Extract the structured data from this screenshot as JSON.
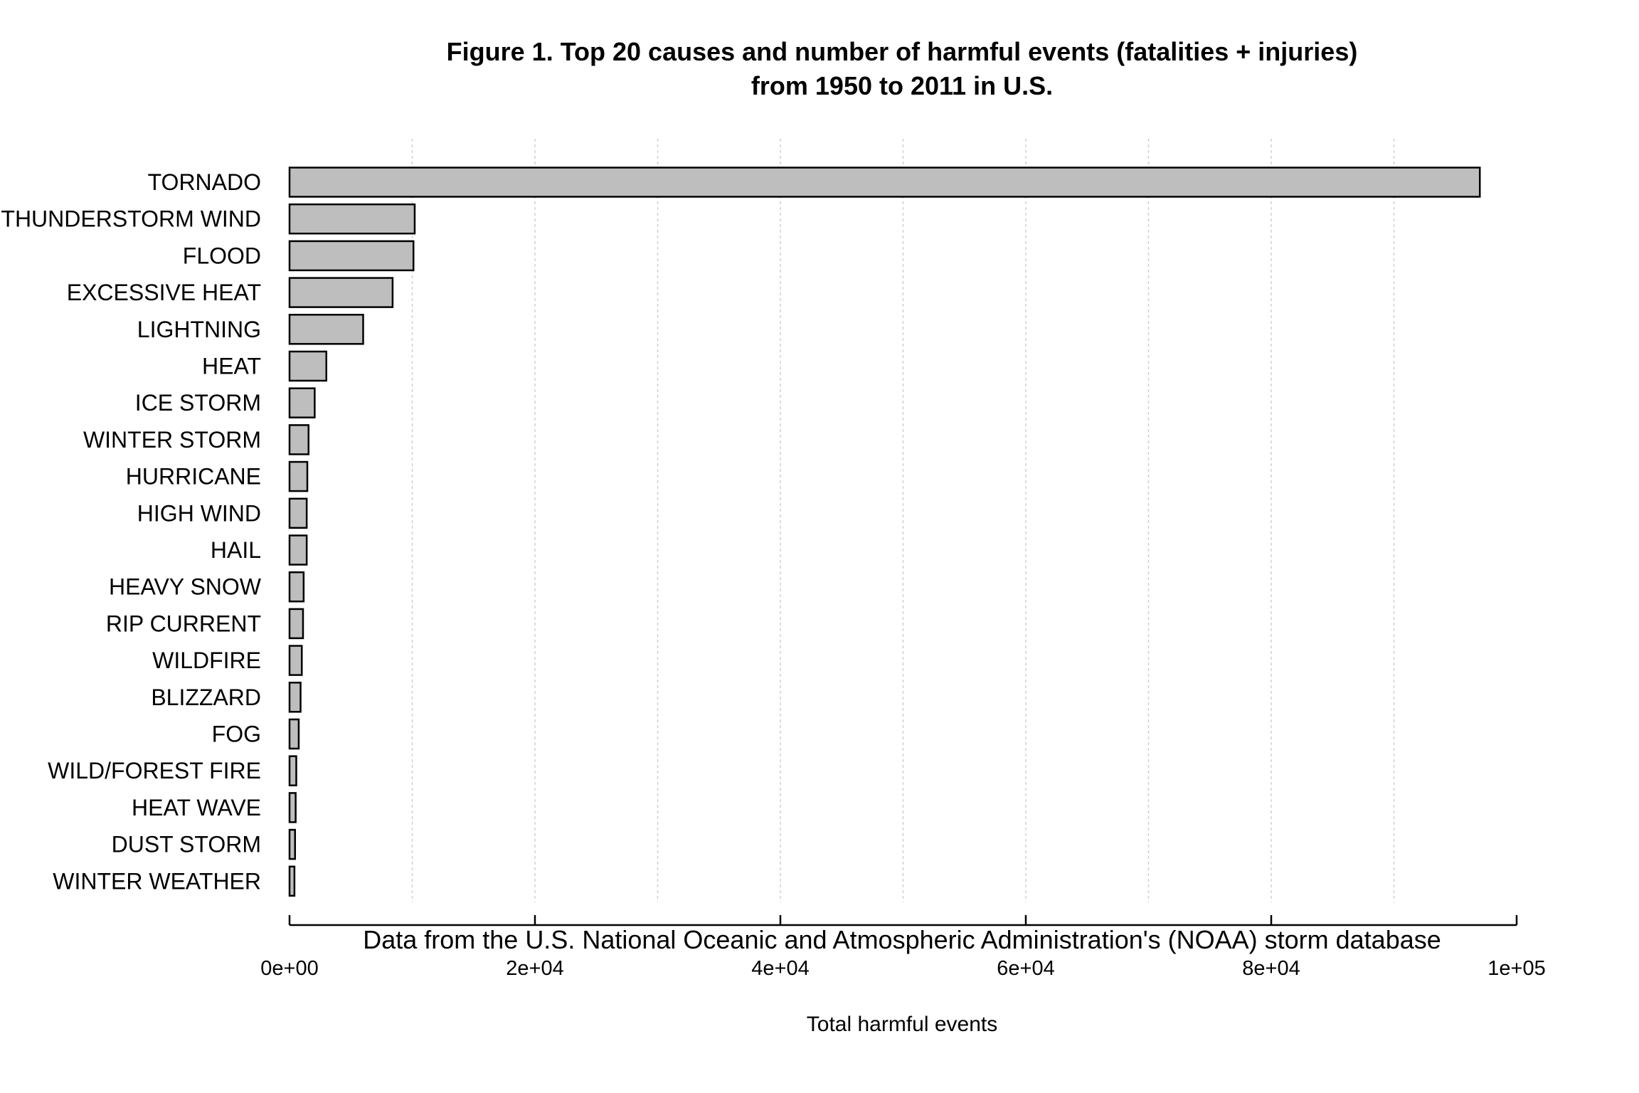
{
  "chart_data": {
    "type": "bar",
    "orientation": "horizontal",
    "title_line1": "Figure 1. Top 20 causes and number of harmful events (fatalities + injuries)",
    "title_line2": "from 1950 to 2011 in U.S.",
    "xlabel": "Total harmful events",
    "caption": "Data from the U.S. National Oceanic and Atmospheric Administration's (NOAA) storm database",
    "xlim": [
      0,
      100000
    ],
    "xticks": [
      {
        "value": 0,
        "label": "0e+00"
      },
      {
        "value": 20000,
        "label": "2e+04"
      },
      {
        "value": 40000,
        "label": "4e+04"
      },
      {
        "value": 60000,
        "label": "6e+04"
      },
      {
        "value": 80000,
        "label": "8e+04"
      },
      {
        "value": 100000,
        "label": "1e+05"
      }
    ],
    "gridlines": [
      10000,
      20000,
      30000,
      40000,
      50000,
      60000,
      70000,
      80000,
      90000
    ],
    "categories": [
      "TORNADO",
      "THUNDERSTORM WIND",
      "FLOOD",
      "EXCESSIVE HEAT",
      "LIGHTNING",
      "HEAT",
      "ICE STORM",
      "WINTER STORM",
      "HURRICANE",
      "HIGH WIND",
      "HAIL",
      "HEAVY SNOW",
      "RIP CURRENT",
      "WILDFIRE",
      "BLIZZARD",
      "FOG",
      "WILD/FOREST FIRE",
      "HEAT WAVE",
      "DUST STORM",
      "WINTER WEATHER"
    ],
    "values": [
      97000,
      10200,
      10100,
      8400,
      6000,
      3000,
      2050,
      1550,
      1450,
      1400,
      1400,
      1150,
      1100,
      1000,
      900,
      750,
      550,
      500,
      450,
      400
    ],
    "colors": {
      "bar_fill": "#bebebe",
      "bar_stroke": "#000000",
      "grid": "#d0d0d0"
    }
  }
}
